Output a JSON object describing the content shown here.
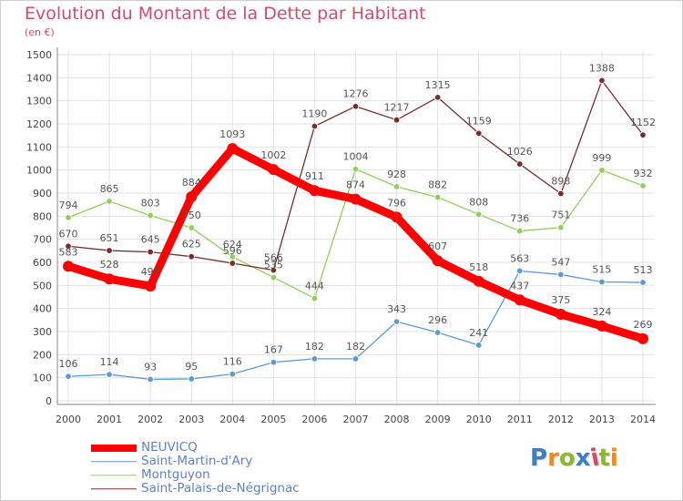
{
  "title": "Evolution du Montant de la Dette par Habitant",
  "subtitle": "(en €)",
  "logo": {
    "text": "Proxiti",
    "letter_colors": [
      "#3e7ec2",
      "#f08a1c",
      "#8ab832",
      "#3e7ec2",
      "#d64a6a",
      "#8ab832",
      "#f08a1c"
    ]
  },
  "chart_data": {
    "type": "line",
    "title": "Evolution du Montant de la Dette par Habitant",
    "subtitle": "(en €)",
    "categories": [
      "2000",
      "2001",
      "2002",
      "2003",
      "2004",
      "2005",
      "2006",
      "2007",
      "2008",
      "2009",
      "2010",
      "2011",
      "2012",
      "2013",
      "2014"
    ],
    "ylim": [
      0,
      1500
    ],
    "yticks": [
      "0",
      "100",
      "200",
      "300",
      "400",
      "500",
      "600",
      "700",
      "800",
      "900",
      "1000",
      "1100",
      "1200",
      "1300",
      "1400",
      "1500"
    ],
    "grid": true,
    "legend_position": "bottom-left",
    "series": [
      {
        "name": "NEUVICQ",
        "color": "#ff0000",
        "labels_visible": [
          true,
          true,
          true,
          true,
          true,
          true,
          true,
          true,
          true,
          true,
          true,
          true,
          true,
          true,
          true
        ],
        "labels": [
          "583",
          "528",
          "497",
          "884",
          "1093",
          "1002",
          "911",
          "874",
          "796",
          "607",
          "518",
          "437",
          "375",
          "324",
          "269"
        ],
        "values": [
          583,
          528,
          497,
          884,
          1093,
          1002,
          911,
          874,
          796,
          607,
          518,
          437,
          375,
          324,
          269
        ]
      },
      {
        "name": "Saint-Martin-d'Ary",
        "color": "#5b9bd5",
        "labels": [
          "106",
          "114",
          "93",
          "95",
          "116",
          "167",
          "182",
          "182",
          "343",
          "296",
          "241",
          "563",
          "547",
          "515",
          "513"
        ],
        "values": [
          106,
          114,
          93,
          95,
          116,
          167,
          182,
          182,
          343,
          296,
          241,
          563,
          547,
          515,
          513
        ]
      },
      {
        "name": "Montguyon",
        "color": "#8fd05a",
        "labels": [
          "794",
          "865",
          "803",
          "750",
          "624",
          "535",
          "444",
          "1004",
          "928",
          "882",
          "808",
          "736",
          "751",
          "999",
          "932"
        ],
        "values": [
          794,
          865,
          803,
          750,
          624,
          535,
          444,
          1004,
          928,
          882,
          808,
          736,
          751,
          999,
          932
        ]
      },
      {
        "name": "Saint-Palais-de-Négrignac",
        "color": "#7a2c2c",
        "labels": [
          "670",
          "651",
          "645",
          "625",
          "596",
          "566",
          "1190",
          "1276",
          "1217",
          "1315",
          "1159",
          "1026",
          "898",
          "1388",
          "1152"
        ],
        "values": [
          670,
          651,
          645,
          625,
          596,
          566,
          1190,
          1276,
          1217,
          1315,
          1159,
          1026,
          898,
          1388,
          1152
        ]
      }
    ]
  }
}
